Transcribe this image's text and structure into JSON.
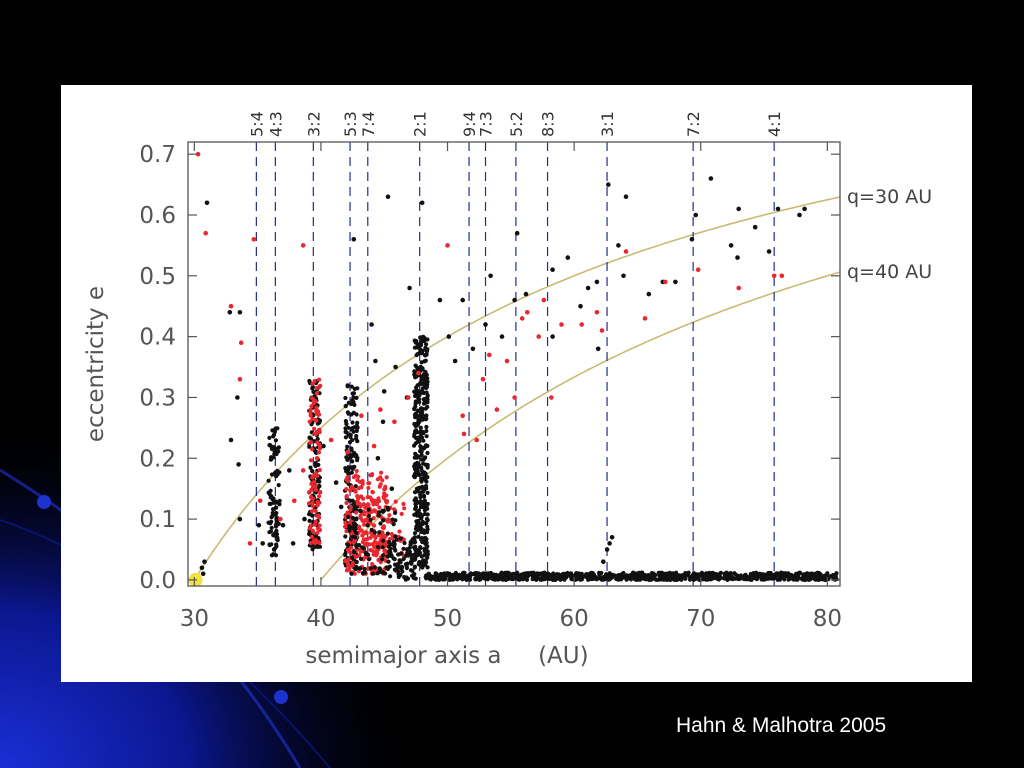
{
  "slide": {
    "credit": "Hahn & Malhotra 2005",
    "background_color": "#000000",
    "accent_color": "#1a2fd6"
  },
  "chart_data": {
    "type": "scatter",
    "title": "",
    "xlabel": "semimajor axis a     (AU)",
    "ylabel": "eccentricity e",
    "xlim": [
      29.5,
      81
    ],
    "ylim": [
      -0.01,
      0.72
    ],
    "xticks": [
      30,
      40,
      50,
      60,
      70,
      80
    ],
    "yticks": [
      0.0,
      0.1,
      0.2,
      0.3,
      0.4,
      0.5,
      0.6,
      0.7
    ],
    "grid": false,
    "colors": {
      "black": "#111111",
      "red": "#e8282e",
      "resonance_line": "#1f2f8f",
      "q_curve": "#c8bb74",
      "neptune": "#f4e23c"
    },
    "resonances": [
      {
        "label": "5:4",
        "a": 34.9
      },
      {
        "label": "4:3",
        "a": 36.4
      },
      {
        "label": "3:2",
        "a": 39.4
      },
      {
        "label": "5:3",
        "a": 42.3
      },
      {
        "label": "7:4",
        "a": 43.7
      },
      {
        "label": "2:1",
        "a": 47.8
      },
      {
        "label": "9:4",
        "a": 51.7
      },
      {
        "label": "7:3",
        "a": 53.0
      },
      {
        "label": "5:2",
        "a": 55.4
      },
      {
        "label": "8:3",
        "a": 57.9
      },
      {
        "label": "3:1",
        "a": 62.6
      },
      {
        "label": "7:2",
        "a": 69.4
      },
      {
        "label": "4:1",
        "a": 75.8
      }
    ],
    "q_curves": [
      {
        "name": "q=30  AU",
        "q": 30
      },
      {
        "name": "q=40  AU",
        "q": 40
      }
    ],
    "neptune": {
      "a": 30.1,
      "e": 0.0
    },
    "series": [
      {
        "name": "black",
        "points": [
          [
            31.0,
            0.62
          ],
          [
            32.8,
            0.44
          ],
          [
            32.9,
            0.23
          ],
          [
            33.6,
            0.44
          ],
          [
            33.4,
            0.3
          ],
          [
            33.5,
            0.19
          ],
          [
            33.6,
            0.1
          ],
          [
            45.3,
            0.63
          ],
          [
            48.0,
            0.62
          ],
          [
            42.6,
            0.56
          ],
          [
            47.0,
            0.48
          ],
          [
            49.4,
            0.46
          ],
          [
            51.2,
            0.46
          ],
          [
            52.0,
            0.38
          ],
          [
            53.4,
            0.5
          ],
          [
            55.5,
            0.57
          ],
          [
            55.3,
            0.46
          ],
          [
            58.3,
            0.51
          ],
          [
            59.5,
            0.53
          ],
          [
            60.5,
            0.45
          ],
          [
            61.1,
            0.48
          ],
          [
            61.8,
            0.49
          ],
          [
            62.7,
            0.65
          ],
          [
            63.5,
            0.55
          ],
          [
            64.1,
            0.63
          ],
          [
            63.9,
            0.5
          ],
          [
            65.9,
            0.47
          ],
          [
            67.0,
            0.49
          ],
          [
            68.0,
            0.49
          ],
          [
            69.6,
            0.6
          ],
          [
            69.3,
            0.56
          ],
          [
            70.8,
            0.66
          ],
          [
            72.4,
            0.55
          ],
          [
            72.9,
            0.53
          ],
          [
            73.0,
            0.61
          ],
          [
            74.3,
            0.58
          ],
          [
            75.4,
            0.54
          ],
          [
            76.1,
            0.61
          ],
          [
            77.8,
            0.6
          ],
          [
            78.2,
            0.61
          ],
          [
            56.2,
            0.47
          ],
          [
            58.3,
            0.4
          ],
          [
            61.9,
            0.38
          ],
          [
            50.1,
            0.4
          ],
          [
            50.6,
            0.36
          ],
          [
            53.0,
            0.42
          ],
          [
            54.3,
            0.4
          ],
          [
            44.3,
            0.36
          ],
          [
            44.0,
            0.42
          ],
          [
            45.9,
            0.35
          ],
          [
            45.0,
            0.31
          ],
          [
            46.8,
            0.3
          ],
          [
            44.5,
            0.2
          ],
          [
            44.9,
            0.26
          ],
          [
            45.6,
            0.15
          ],
          [
            41.2,
            0.16
          ],
          [
            41.6,
            0.12
          ],
          [
            40.2,
            0.22
          ],
          [
            37.5,
            0.18
          ],
          [
            38.7,
            0.1
          ],
          [
            37.0,
            0.09
          ],
          [
            37.8,
            0.06
          ],
          [
            35.1,
            0.09
          ],
          [
            35.4,
            0.06
          ],
          [
            36.3,
            0.05
          ],
          [
            30.6,
            0.02
          ],
          [
            30.8,
            0.03
          ],
          [
            30.7,
            0.01
          ],
          [
            62.6,
            0.05
          ],
          [
            62.8,
            0.06
          ],
          [
            63.0,
            0.07
          ],
          [
            62.3,
            0.03
          ]
        ]
      },
      {
        "name": "red",
        "points": [
          [
            30.3,
            0.7
          ],
          [
            30.9,
            0.57
          ],
          [
            32.9,
            0.45
          ],
          [
            34.7,
            0.56
          ],
          [
            33.7,
            0.39
          ],
          [
            33.6,
            0.33
          ],
          [
            38.6,
            0.55
          ],
          [
            50.0,
            0.55
          ],
          [
            60.6,
            0.42
          ],
          [
            61.8,
            0.44
          ],
          [
            62.2,
            0.41
          ],
          [
            64.1,
            0.54
          ],
          [
            65.6,
            0.43
          ],
          [
            67.2,
            0.49
          ],
          [
            69.8,
            0.51
          ],
          [
            73.0,
            0.48
          ],
          [
            75.8,
            0.5
          ],
          [
            76.4,
            0.5
          ],
          [
            55.9,
            0.43
          ],
          [
            56.3,
            0.44
          ],
          [
            57.2,
            0.4
          ],
          [
            58.2,
            0.3
          ],
          [
            54.7,
            0.36
          ],
          [
            55.3,
            0.3
          ],
          [
            53.3,
            0.37
          ],
          [
            51.3,
            0.24
          ],
          [
            52.3,
            0.23
          ],
          [
            51.2,
            0.27
          ],
          [
            47.7,
            0.34
          ],
          [
            46.9,
            0.3
          ],
          [
            45.8,
            0.26
          ],
          [
            44.7,
            0.28
          ],
          [
            44.2,
            0.22
          ],
          [
            43.2,
            0.27
          ],
          [
            42.1,
            0.21
          ],
          [
            40.8,
            0.23
          ],
          [
            39.7,
            0.2
          ],
          [
            38.6,
            0.18
          ],
          [
            37.9,
            0.13
          ],
          [
            36.8,
            0.1
          ],
          [
            35.2,
            0.13
          ],
          [
            34.4,
            0.06
          ],
          [
            59.0,
            0.42
          ],
          [
            57.6,
            0.46
          ],
          [
            52.8,
            0.33
          ],
          [
            53.9,
            0.28
          ]
        ]
      }
    ],
    "clusters": [
      {
        "color": "black",
        "a_center": 36.3,
        "a_width": 0.9,
        "e_min": 0.04,
        "e_max": 0.25,
        "count": 90
      },
      {
        "color": "black",
        "a_center": 39.5,
        "a_width": 0.9,
        "e_min": 0.05,
        "e_max": 0.33,
        "count": 130
      },
      {
        "color": "red",
        "a_center": 39.5,
        "a_width": 0.9,
        "e_min": 0.06,
        "e_max": 0.33,
        "count": 90
      },
      {
        "color": "black",
        "a_center": 42.4,
        "a_width": 1.0,
        "e_min": 0.02,
        "e_max": 0.33,
        "count": 170
      },
      {
        "color": "red",
        "a_center": 43.6,
        "a_width": 3.4,
        "e_min": 0.01,
        "e_max": 0.18,
        "count": 230
      },
      {
        "color": "red",
        "a_center": 44.6,
        "a_width": 4.0,
        "e_min": 0.04,
        "e_max": 0.14,
        "count": 80
      },
      {
        "color": "black",
        "a_center": 44.0,
        "a_width": 4.0,
        "e_min": 0.01,
        "e_max": 0.12,
        "count": 80
      },
      {
        "color": "black",
        "a_center": 47.9,
        "a_width": 1.1,
        "e_min": 0.02,
        "e_max": 0.4,
        "count": 380
      },
      {
        "color": "black",
        "a_center": 46.4,
        "a_width": 2.2,
        "e_min": 0.0,
        "e_max": 0.07,
        "count": 80
      },
      {
        "color": "black",
        "a_center": 64.5,
        "a_width": 32.5,
        "e_min": 0.0,
        "e_max": 0.012,
        "count": 850
      }
    ]
  }
}
